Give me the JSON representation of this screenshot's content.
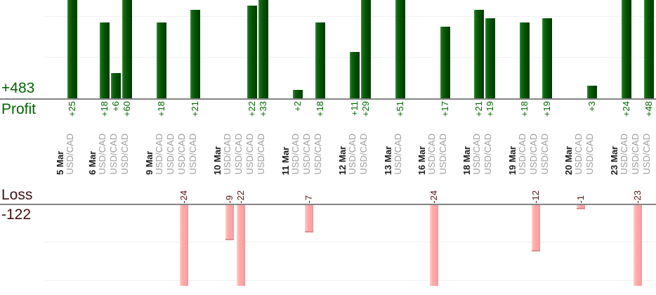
{
  "chart_data": {
    "type": "bar",
    "description": "Daily trade profit/loss report, two stacked bar panels sharing a category axis of trades per date",
    "panels": {
      "profit": {
        "axis_title": "Profit",
        "total_label": "+483",
        "total": 483,
        "bar_color": "#006400",
        "text_color": "#006b00",
        "visible_value_range": [
          0,
          23
        ],
        "gridlines_every_units": 10
      },
      "loss": {
        "axis_title": "Loss",
        "total_label": "-122",
        "total": -122,
        "bar_color": "#ffa8a8",
        "text_color": "#5a1414",
        "visible_value_range": [
          0,
          -21
        ],
        "gridlines_every_units": 10
      }
    },
    "category_axis": {
      "date_label_color": "#1c1c1c",
      "symbol_label_color": "#9e9e9e",
      "labels_rotated": "bottom-to-top"
    },
    "groups": [
      {
        "date": "5 Mar",
        "trades": [
          {
            "symbol": "USD/CAD",
            "value": 25,
            "label": "+25"
          }
        ]
      },
      {
        "date": "6 Mar",
        "trades": [
          {
            "symbol": "USD/CAD",
            "value": 18,
            "label": "+18"
          },
          {
            "symbol": "USD/CAD",
            "value": 6,
            "label": "+6"
          },
          {
            "symbol": "USD/CAD",
            "value": 60,
            "label": "+60"
          }
        ]
      },
      {
        "date": "9 Mar",
        "trades": [
          {
            "symbol": "USD/CAD",
            "value": 18,
            "label": "+18"
          },
          {
            "symbol": "USD/CAD",
            "value": 0,
            "label": ""
          },
          {
            "symbol": "USD/CAD",
            "value": -24,
            "label": "-24"
          },
          {
            "symbol": "USD/CAD",
            "value": 21,
            "label": "+21"
          }
        ]
      },
      {
        "date": "10 Mar",
        "trades": [
          {
            "symbol": "USD/CAD",
            "value": -9,
            "label": "-9"
          },
          {
            "symbol": "USD/CAD",
            "value": -22,
            "label": "-22"
          },
          {
            "symbol": "USD/CAD",
            "value": 22,
            "label": "+22"
          },
          {
            "symbol": "USD/CAD",
            "value": 33,
            "label": "+33"
          }
        ]
      },
      {
        "date": "11 Mar",
        "trades": [
          {
            "symbol": "USD/CAD",
            "value": 2,
            "label": "+2"
          },
          {
            "symbol": "USD/CAD",
            "value": -7,
            "label": "-7"
          },
          {
            "symbol": "USD/CAD",
            "value": 18,
            "label": "+18"
          }
        ]
      },
      {
        "date": "12 Mar",
        "trades": [
          {
            "symbol": "USD/CAD",
            "value": 11,
            "label": "+11"
          },
          {
            "symbol": "USD/CAD",
            "value": 29,
            "label": "+29"
          }
        ]
      },
      {
        "date": "13 Mar",
        "trades": [
          {
            "symbol": "USD/CAD",
            "value": 51,
            "label": "+51"
          }
        ]
      },
      {
        "date": "16 Mar",
        "trades": [
          {
            "symbol": "USD/CAD",
            "value": -24,
            "label": "-24"
          },
          {
            "symbol": "USD/CAD",
            "value": 17,
            "label": "+17"
          }
        ]
      },
      {
        "date": "18 Mar",
        "trades": [
          {
            "symbol": "USD/CAD",
            "value": 21,
            "label": "+21"
          },
          {
            "symbol": "USD/CAD",
            "value": 19,
            "label": "+19"
          }
        ]
      },
      {
        "date": "19 Mar",
        "trades": [
          {
            "symbol": "USD/CAD",
            "value": 18,
            "label": "+18"
          },
          {
            "symbol": "USD/CAD",
            "value": -12,
            "label": "-12"
          },
          {
            "symbol": "USD/CAD",
            "value": 19,
            "label": "+19"
          }
        ]
      },
      {
        "date": "20 Mar",
        "trades": [
          {
            "symbol": "USD/CAD",
            "value": -1,
            "label": "-1"
          },
          {
            "symbol": "USD/CAD",
            "value": 3,
            "label": "+3"
          }
        ]
      },
      {
        "date": "23 Mar",
        "trades": [
          {
            "symbol": "USD/CAD",
            "value": 24,
            "label": "+24"
          },
          {
            "symbol": "USD/CAD",
            "value": -23,
            "label": "-23"
          },
          {
            "symbol": "USD/CAD",
            "value": 48,
            "label": "+48"
          }
        ]
      }
    ]
  }
}
